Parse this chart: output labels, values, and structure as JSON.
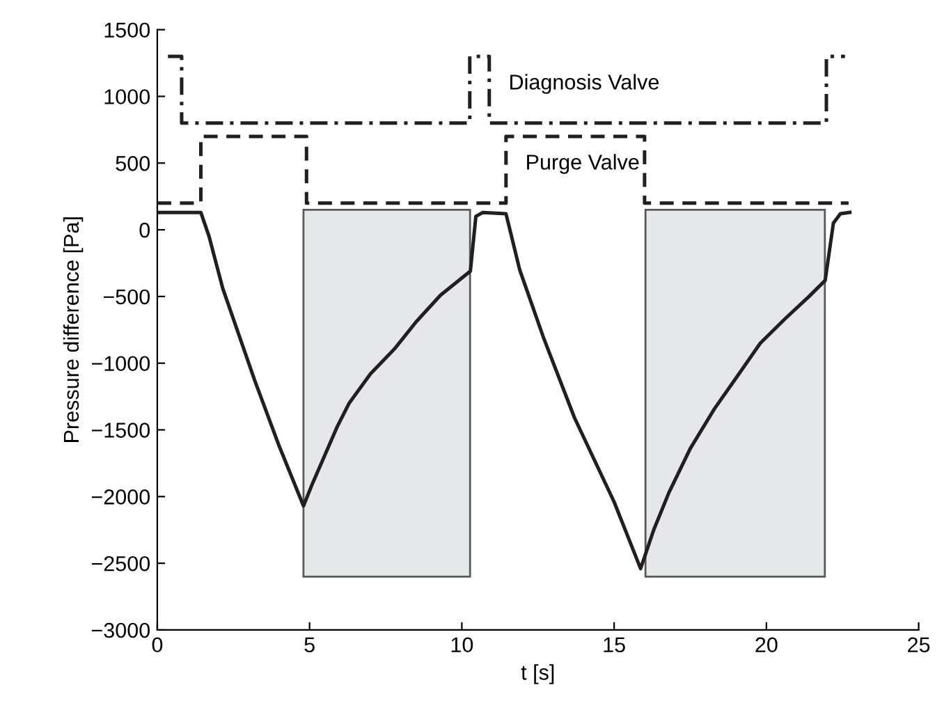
{
  "chart_data": {
    "type": "line",
    "xlabel": "t [s]",
    "ylabel": "Pressure difference [Pa]",
    "xlim": [
      0,
      25
    ],
    "xticks": [
      0,
      5,
      10,
      15,
      20,
      25
    ],
    "ylim": [
      -3000,
      1500
    ],
    "yticks": [
      {
        "value": -3000,
        "label": "−3000"
      },
      {
        "value": -2500,
        "label": "−2500"
      },
      {
        "value": -2000,
        "label": "−2000"
      },
      {
        "value": -1500,
        "label": "−1500"
      },
      {
        "value": -1000,
        "label": "−1000"
      },
      {
        "value": -500,
        "label": "−500"
      },
      0,
      500,
      1000,
      1500
    ],
    "grid": false,
    "legend": false,
    "series": [
      {
        "type": "area",
        "color": "#e6e7e8",
        "x": [
          4.8,
          4.8,
          10.27,
          10.27
        ],
        "values": [
          -2600,
          150,
          150,
          -2600
        ]
      },
      {
        "type": "area",
        "color": "#e6e7e8",
        "x": [
          16.03,
          16.03,
          21.92,
          21.92
        ],
        "values": [
          -2600,
          150,
          150,
          -2600
        ]
      },
      {
        "type": "step",
        "name": "Diagnosis Valve",
        "color": "#231f20",
        "line_style": "dashdot",
        "x": [
          0.35,
          0.8,
          10.26,
          10.9,
          21.97,
          22.58
        ],
        "values": [
          1300,
          800,
          1300,
          800,
          1300,
          1300
        ]
      },
      {
        "type": "step",
        "name": "Purge Valve",
        "color": "#231f20",
        "line_style": "dashed",
        "x": [
          0,
          1.43,
          4.9,
          11.45,
          16.0,
          22.7
        ],
        "values": [
          200,
          700,
          200,
          700,
          200,
          200
        ]
      },
      {
        "color": "#231f20",
        "line_style": "solid",
        "x": [
          0,
          1.43,
          1.7,
          2.15,
          3.2,
          4.0,
          4.8,
          5.1,
          5.5,
          5.9,
          6.3,
          7.0,
          7.8,
          8.5,
          9.3,
          10.28,
          10.46,
          10.69,
          11.45,
          11.9,
          12.7,
          13.7,
          15.0,
          15.87,
          16.3,
          16.8,
          17.5,
          18.3,
          19.1,
          19.8,
          20.6,
          21.4,
          21.93,
          22.2,
          22.43,
          22.74
        ],
        "values": [
          130,
          130,
          -50,
          -440,
          -1130,
          -1620,
          -2070,
          -1900,
          -1690,
          -1480,
          -1300,
          -1080,
          -890,
          -690,
          -490,
          -310,
          100,
          130,
          120,
          -300,
          -820,
          -1410,
          -2040,
          -2540,
          -2250,
          -1970,
          -1640,
          -1340,
          -1080,
          -850,
          -670,
          -500,
          -380,
          50,
          120,
          130
        ]
      }
    ]
  }
}
